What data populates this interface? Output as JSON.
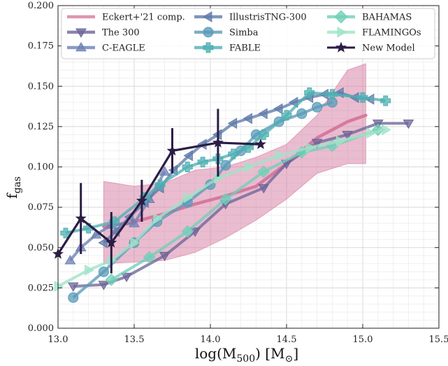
{
  "chart_data": {
    "type": "line",
    "xlabel_main": "log(M",
    "xlabel_sub": "500",
    "xlabel_unit": ") [M",
    "xlabel_sun": "⊙",
    "xlabel_end": "]",
    "ylabel_main": "f",
    "ylabel_sub": "gas",
    "xlim": [
      13.0,
      15.5
    ],
    "ylim": [
      0.0,
      0.2
    ],
    "xticks": [
      "13.0",
      "13.5",
      "14.0",
      "14.5",
      "15.0",
      "15.5"
    ],
    "yticks": [
      "0.000",
      "0.025",
      "0.050",
      "0.075",
      "0.100",
      "0.125",
      "0.150",
      "0.175",
      "0.200"
    ],
    "grid": true,
    "legend_position": "top",
    "band": {
      "name": "Eckert+'21 comp.",
      "color": "#d6799f",
      "x": [
        13.3,
        13.5,
        13.7,
        13.9,
        14.1,
        14.3,
        14.5,
        14.7,
        14.9,
        15.02
      ],
      "y": [
        0.063,
        0.066,
        0.071,
        0.077,
        0.082,
        0.088,
        0.102,
        0.118,
        0.128,
        0.132
      ],
      "upper": [
        0.091,
        0.088,
        0.09,
        0.098,
        0.1,
        0.106,
        0.114,
        0.132,
        0.16,
        0.164
      ],
      "lower": [
        0.04,
        0.041,
        0.042,
        0.047,
        0.056,
        0.067,
        0.08,
        0.096,
        0.102,
        0.102
      ]
    },
    "series": [
      {
        "name": "The 300",
        "color": "#6d6699",
        "marker": "tri-down",
        "x": [
          13.1,
          13.3,
          13.45,
          13.7,
          13.9,
          14.1,
          14.35,
          14.5,
          14.7,
          14.9,
          15.1,
          15.3
        ],
        "y": [
          0.026,
          0.027,
          0.032,
          0.045,
          0.06,
          0.077,
          0.087,
          0.102,
          0.115,
          0.12,
          0.127,
          0.127
        ]
      },
      {
        "name": "C-EAGLE",
        "color": "#6e80b5",
        "marker": "tri-up",
        "x": [
          13.08,
          13.15,
          13.25,
          13.35,
          13.5,
          13.6,
          13.7
        ],
        "y": [
          0.042,
          0.05,
          0.058,
          0.064,
          0.065,
          0.08,
          0.097
        ]
      },
      {
        "name": "IllustrisTNG-300",
        "color": "#5f7baa",
        "marker": "tri-left",
        "x": [
          13.3,
          13.38,
          13.47,
          13.57,
          13.67,
          13.76,
          13.86,
          13.95,
          14.05,
          14.15,
          14.25,
          14.35,
          14.45,
          14.55,
          14.65,
          14.75,
          14.85,
          14.95,
          15.05
        ],
        "y": [
          0.053,
          0.06,
          0.069,
          0.078,
          0.087,
          0.098,
          0.107,
          0.114,
          0.12,
          0.127,
          0.13,
          0.133,
          0.136,
          0.14,
          0.143,
          0.145,
          0.146,
          0.143,
          0.142
        ]
      },
      {
        "name": "Simba",
        "color": "#5a9bb8",
        "marker": "circle",
        "x": [
          13.1,
          13.3,
          13.5,
          13.65,
          13.85,
          14.0,
          14.1,
          14.2,
          14.3,
          14.45,
          14.6,
          14.7,
          14.8
        ],
        "y": [
          0.019,
          0.035,
          0.053,
          0.066,
          0.078,
          0.089,
          0.101,
          0.11,
          0.12,
          0.128,
          0.133,
          0.137,
          0.14
        ]
      },
      {
        "name": "FABLE",
        "color": "#4fb0b3",
        "marker": "plus",
        "x": [
          13.05,
          13.2,
          13.37,
          13.57,
          13.67,
          13.85,
          13.95,
          14.05,
          14.15,
          14.25,
          14.35,
          14.5,
          14.65,
          14.8,
          15.0,
          15.15
        ],
        "y": [
          0.059,
          0.062,
          0.066,
          0.081,
          0.089,
          0.1,
          0.103,
          0.105,
          0.108,
          0.112,
          0.12,
          0.132,
          0.146,
          0.145,
          0.143,
          0.141
        ]
      },
      {
        "name": "BAHAMAS",
        "color": "#6fcfb8",
        "marker": "diamond",
        "x": [
          13.35,
          13.6,
          13.85,
          14.1,
          14.35,
          14.6,
          14.8,
          15.1
        ],
        "y": [
          0.03,
          0.044,
          0.06,
          0.08,
          0.097,
          0.109,
          0.113,
          0.123
        ]
      },
      {
        "name": "FLAMINGOs",
        "color": "#9fe3c8",
        "marker": "tri-right",
        "x": [
          13.0,
          13.2,
          13.35,
          13.5,
          13.65,
          13.85,
          14.05,
          14.25,
          14.45,
          14.65,
          14.85,
          15.05,
          15.15
        ],
        "y": [
          0.026,
          0.036,
          0.042,
          0.053,
          0.068,
          0.081,
          0.093,
          0.1,
          0.107,
          0.112,
          0.116,
          0.121,
          0.123
        ]
      },
      {
        "name": "New Model",
        "color": "#2b1d45",
        "marker": "star",
        "x": [
          13.0,
          13.15,
          13.35,
          13.55,
          13.75,
          14.05,
          14.33
        ],
        "y": [
          0.046,
          0.068,
          0.053,
          0.079,
          0.11,
          0.115,
          0.114
        ],
        "err": [
          0.0,
          0.022,
          0.019,
          0.013,
          0.014,
          0.021,
          0.0
        ]
      }
    ]
  }
}
